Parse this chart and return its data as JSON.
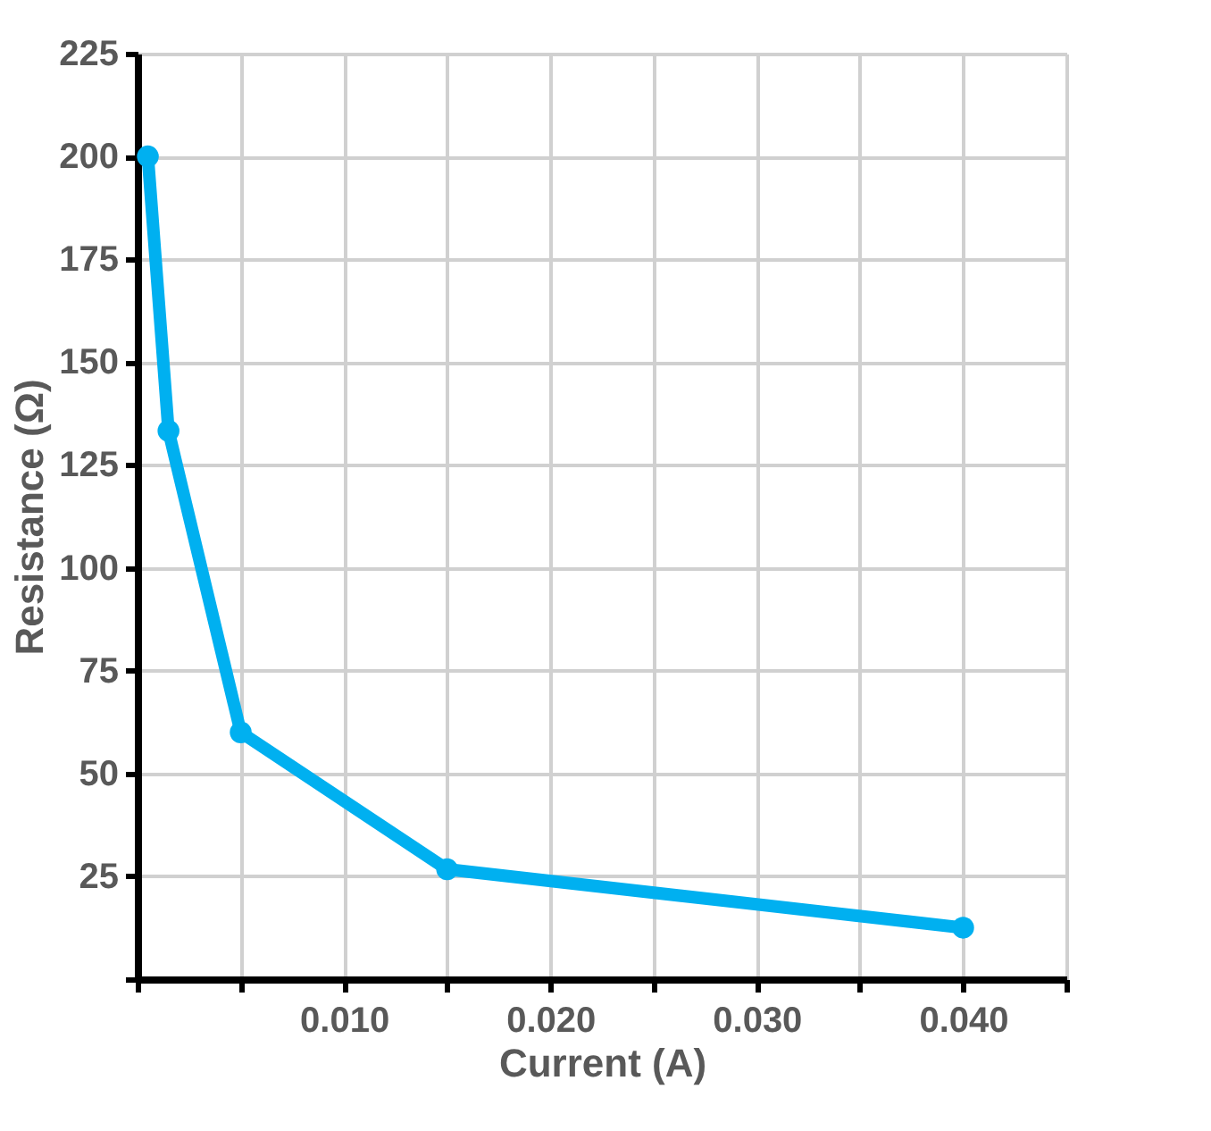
{
  "chart_data": {
    "type": "line",
    "xlabel": "Current (A)",
    "ylabel": "Resistance (Ω)",
    "x": [
      0.0005,
      0.0015,
      0.005,
      0.015,
      0.04
    ],
    "series": [
      {
        "color": "#00b0f0",
        "values": [
          200,
          133.3,
          60,
          26.7,
          12.5
        ]
      }
    ],
    "xlim": [
      0,
      0.045
    ],
    "xticks": [
      {
        "value": 0,
        "label": null
      },
      {
        "value": 0.005,
        "label": null
      },
      {
        "value": 0.01,
        "label": "0.010"
      },
      {
        "value": 0.015,
        "label": null
      },
      {
        "value": 0.02,
        "label": "0.020"
      },
      {
        "value": 0.025,
        "label": null
      },
      {
        "value": 0.03,
        "label": "0.030"
      },
      {
        "value": 0.035,
        "label": null
      },
      {
        "value": 0.04,
        "label": "0.040"
      },
      {
        "value": 0.045,
        "label": null
      }
    ],
    "ylim": [
      0,
      225
    ],
    "yticks": [
      {
        "value": 0,
        "label": null
      },
      25,
      50,
      75,
      100,
      125,
      150,
      175,
      200,
      225
    ],
    "grid": true,
    "marker": "circle",
    "line_style": "solid"
  }
}
